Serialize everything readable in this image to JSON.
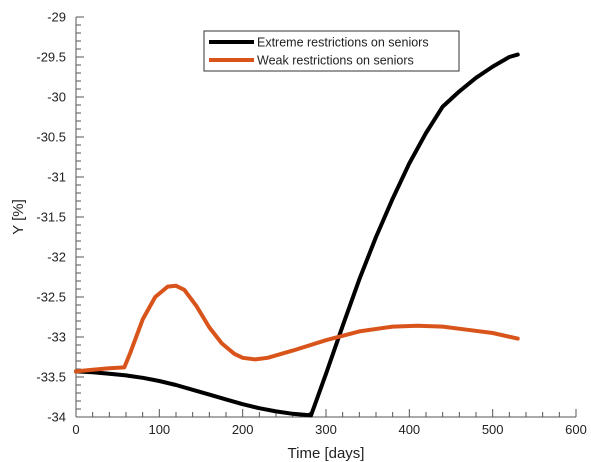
{
  "chart_data": {
    "type": "line",
    "xlabel": "Time [days]",
    "ylabel": "Y [%]",
    "xlim": [
      0,
      600
    ],
    "ylim": [
      -34,
      -29
    ],
    "xticks": [
      0,
      100,
      200,
      300,
      400,
      500,
      600
    ],
    "yticks": [
      -34,
      -33.5,
      -33,
      -32.5,
      -32,
      -31.5,
      -31,
      -30.5,
      -30,
      -29.5,
      -29
    ],
    "grid": false,
    "legend_position": "top-center",
    "series": [
      {
        "name": "Extreme restrictions on seniors",
        "color": "#000000",
        "x": [
          0,
          20,
          40,
          60,
          80,
          100,
          120,
          140,
          160,
          180,
          200,
          220,
          240,
          260,
          282,
          300,
          320,
          340,
          360,
          380,
          400,
          420,
          440,
          460,
          480,
          500,
          520,
          530
        ],
        "y": [
          -33.43,
          -33.44,
          -33.46,
          -33.48,
          -33.51,
          -33.55,
          -33.6,
          -33.66,
          -33.72,
          -33.78,
          -33.84,
          -33.89,
          -33.93,
          -33.96,
          -33.98,
          -33.46,
          -32.86,
          -32.28,
          -31.75,
          -31.27,
          -30.83,
          -30.45,
          -30.12,
          -29.93,
          -29.76,
          -29.62,
          -29.5,
          -29.47
        ]
      },
      {
        "name": "Weak restrictions on seniors",
        "color": "#d9541b",
        "x": [
          0,
          20,
          40,
          58,
          65,
          80,
          95,
          110,
          120,
          130,
          145,
          160,
          175,
          190,
          200,
          215,
          230,
          260,
          300,
          340,
          380,
          410,
          440,
          470,
          500,
          530
        ],
        "y": [
          -33.43,
          -33.41,
          -33.39,
          -33.38,
          -33.2,
          -32.78,
          -32.5,
          -32.37,
          -32.36,
          -32.41,
          -32.62,
          -32.88,
          -33.08,
          -33.21,
          -33.26,
          -33.28,
          -33.26,
          -33.17,
          -33.04,
          -32.93,
          -32.87,
          -32.86,
          -32.87,
          -32.91,
          -32.95,
          -33.02
        ]
      }
    ]
  }
}
